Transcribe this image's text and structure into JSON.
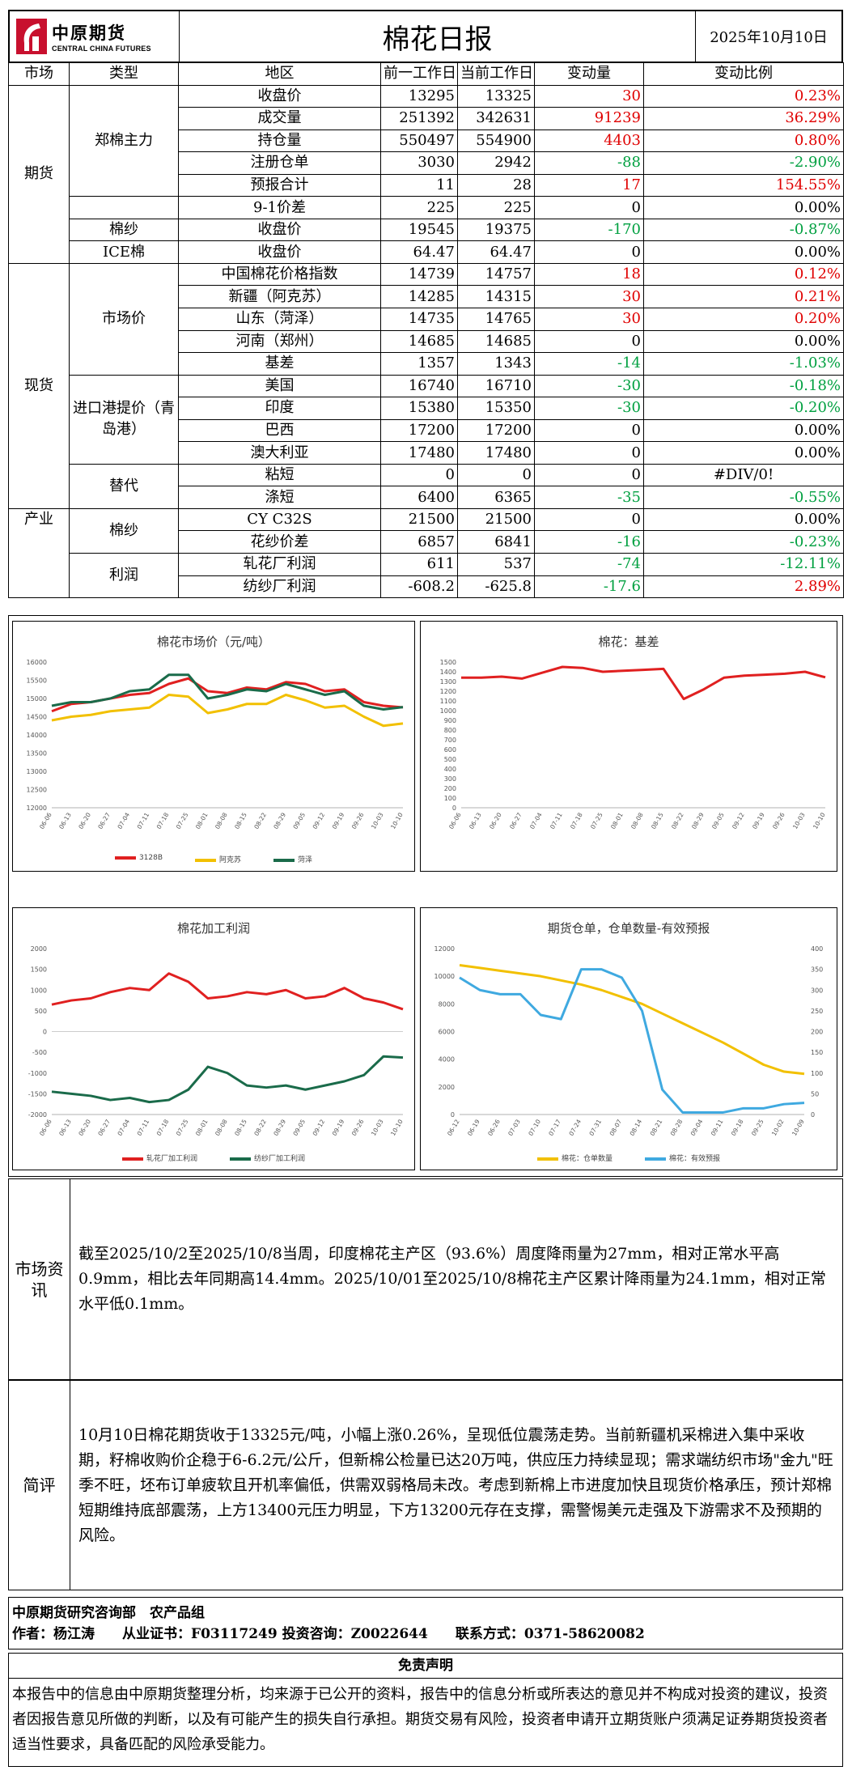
{
  "header": {
    "logo_cn": "中原期货",
    "logo_en": "CENTRAL CHINA FUTURES",
    "title": "棉花日报",
    "date": "2025年10月10日"
  },
  "table": {
    "columns": [
      "市场",
      "类型",
      "地区",
      "前一工作日",
      "当前工作日",
      "变动量",
      "变动比例"
    ],
    "rows": [
      {
        "item": "收盘价",
        "prev": "13295",
        "cur": "13325",
        "chg": "30",
        "pct": "0.23%",
        "col": "red"
      },
      {
        "item": "成交量",
        "prev": "251392",
        "cur": "342631",
        "chg": "91239",
        "pct": "36.29%",
        "col": "red"
      },
      {
        "item": "持仓量",
        "prev": "550497",
        "cur": "554900",
        "chg": "4403",
        "pct": "0.80%",
        "col": "red"
      },
      {
        "item": "注册仓单",
        "prev": "3030",
        "cur": "2942",
        "chg": "-88",
        "pct": "-2.90%",
        "col": "grn"
      },
      {
        "item": "预报合计",
        "prev": "11",
        "cur": "28",
        "chg": "17",
        "pct": "154.55%",
        "col": "red"
      },
      {
        "item": "9-1价差",
        "prev": "225",
        "cur": "225",
        "chg": "0",
        "pct": "0.00%",
        "col": ""
      },
      {
        "item": "收盘价",
        "prev": "19545",
        "cur": "19375",
        "chg": "-170",
        "pct": "-0.87%",
        "col": "grn"
      },
      {
        "item": "收盘价",
        "prev": "64.47",
        "cur": "64.47",
        "chg": "0",
        "pct": "0.00%",
        "col": ""
      },
      {
        "item": "中国棉花价格指数",
        "prev": "14739",
        "cur": "14757",
        "chg": "18",
        "pct": "0.12%",
        "col": "red"
      },
      {
        "item": "新疆（阿克苏）",
        "prev": "14285",
        "cur": "14315",
        "chg": "30",
        "pct": "0.21%",
        "col": "red"
      },
      {
        "item": "山东（菏泽）",
        "prev": "14735",
        "cur": "14765",
        "chg": "30",
        "pct": "0.20%",
        "col": "red"
      },
      {
        "item": "河南（郑州）",
        "prev": "14685",
        "cur": "14685",
        "chg": "0",
        "pct": "0.00%",
        "col": ""
      },
      {
        "item": "基差",
        "prev": "1357",
        "cur": "1343",
        "chg": "-14",
        "pct": "-1.03%",
        "col": "grn"
      },
      {
        "item": "美国",
        "prev": "16740",
        "cur": "16710",
        "chg": "-30",
        "pct": "-0.18%",
        "col": "grn"
      },
      {
        "item": "印度",
        "prev": "15380",
        "cur": "15350",
        "chg": "-30",
        "pct": "-0.20%",
        "col": "grn"
      },
      {
        "item": "巴西",
        "prev": "17200",
        "cur": "17200",
        "chg": "0",
        "pct": "0.00%",
        "col": ""
      },
      {
        "item": "澳大利亚",
        "prev": "17480",
        "cur": "17480",
        "chg": "0",
        "pct": "0.00%",
        "col": ""
      },
      {
        "item": "粘短",
        "prev": "0",
        "cur": "0",
        "chg": "0",
        "pct": "#DIV/0!",
        "col": ""
      },
      {
        "item": "涤短",
        "prev": "6400",
        "cur": "6365",
        "chg": "-35",
        "pct": "-0.55%",
        "col": "grn"
      },
      {
        "item": "CY C32S",
        "prev": "21500",
        "cur": "21500",
        "chg": "0",
        "pct": "0.00%",
        "col": ""
      },
      {
        "item": "花纱价差",
        "prev": "6857",
        "cur": "6841",
        "chg": "-16",
        "pct": "-0.23%",
        "col": "grn"
      },
      {
        "item": "轧花厂利润",
        "prev": "611",
        "cur": "537",
        "chg": "-74",
        "pct": "-12.11%",
        "col": "grn"
      },
      {
        "item": "纺纱厂利润",
        "prev": "-608.2",
        "cur": "-625.8",
        "chg": "-17.6",
        "pct": "2.89%",
        "col": "mix"
      }
    ],
    "markets": {
      "futures": "期货",
      "spot": "现货",
      "industry": "产业"
    },
    "types": {
      "zz": "郑棉主力",
      "yarn": "棉纱",
      "ice": "ICE棉",
      "market": "市场价",
      "import": "进口港提价（青岛港）",
      "sub": "替代",
      "yarn2": "棉纱",
      "profit": "利润"
    }
  },
  "chart_data": [
    {
      "type": "line",
      "title": "棉花市场价（元/吨）",
      "ylim": [
        12000,
        16000
      ],
      "yticks": [
        "16000",
        "15500",
        "15000",
        "14500",
        "14000",
        "13500",
        "13000",
        "12500",
        "12000"
      ],
      "x": [
        "06-06",
        "06-13",
        "06-20",
        "06-27",
        "07-04",
        "07-11",
        "07-18",
        "07-25",
        "08-01",
        "08-08",
        "08-15",
        "08-22",
        "08-29",
        "09-05",
        "09-12",
        "09-19",
        "09-26",
        "10-03",
        "10-10"
      ],
      "series": [
        {
          "name": "3128B",
          "color": "#e02020",
          "values": [
            14650,
            14850,
            14900,
            15000,
            15100,
            15150,
            15400,
            15550,
            15200,
            15150,
            15300,
            15250,
            15450,
            15400,
            15200,
            15250,
            14900,
            14800,
            14757
          ]
        },
        {
          "name": "阿克苏",
          "color": "#f2c000",
          "values": [
            14400,
            14500,
            14550,
            14650,
            14700,
            14750,
            15100,
            15050,
            14600,
            14700,
            14850,
            14850,
            15100,
            14950,
            14750,
            14800,
            14500,
            14250,
            14315
          ]
        },
        {
          "name": "菏泽",
          "color": "#1a6b4a",
          "values": [
            14800,
            14900,
            14900,
            15000,
            15200,
            15250,
            15650,
            15650,
            15000,
            15100,
            15250,
            15200,
            15400,
            15250,
            15100,
            15200,
            14800,
            14700,
            14765
          ]
        }
      ]
    },
    {
      "type": "line",
      "title": "棉花：基差",
      "ylim": [
        0,
        1500
      ],
      "yticks": [
        "1500",
        "1400",
        "1300",
        "1200",
        "1100",
        "1000",
        "900",
        "800",
        "700",
        "600",
        "500",
        "400",
        "300",
        "200",
        "100",
        "0"
      ],
      "x": [
        "06-06",
        "06-13",
        "06-20",
        "06-27",
        "07-04",
        "07-11",
        "07-18",
        "07-25",
        "08-01",
        "08-08",
        "08-15",
        "08-22",
        "08-29",
        "09-05",
        "09-12",
        "09-19",
        "09-26",
        "10-03",
        "10-10"
      ],
      "series": [
        {
          "name": "",
          "color": "#e02020",
          "values": [
            1340,
            1340,
            1350,
            1330,
            1390,
            1450,
            1440,
            1400,
            1410,
            1420,
            1430,
            1120,
            1220,
            1340,
            1360,
            1370,
            1380,
            1400,
            1343
          ]
        }
      ]
    },
    {
      "type": "line",
      "title": "棉花加工利润",
      "ylim": [
        -2000,
        2000
      ],
      "yticks": [
        "2000",
        "1500",
        "1000",
        "500",
        "0",
        "-500",
        "-1000",
        "-1500",
        "-2000"
      ],
      "x": [
        "06-06",
        "06-13",
        "06-20",
        "06-27",
        "07-04",
        "07-11",
        "07-18",
        "07-25",
        "08-01",
        "08-08",
        "08-15",
        "08-22",
        "08-29",
        "09-05",
        "09-12",
        "09-19",
        "09-26",
        "10-03",
        "10-10"
      ],
      "series": [
        {
          "name": "轧花厂加工利润",
          "color": "#e02020",
          "values": [
            650,
            750,
            800,
            950,
            1050,
            1000,
            1400,
            1200,
            800,
            850,
            950,
            900,
            1000,
            800,
            850,
            1050,
            800,
            700,
            537
          ]
        },
        {
          "name": "纺纱厂加工利润",
          "color": "#1a6b4a",
          "values": [
            -1450,
            -1500,
            -1550,
            -1650,
            -1600,
            -1700,
            -1650,
            -1400,
            -850,
            -1000,
            -1300,
            -1350,
            -1300,
            -1400,
            -1300,
            -1200,
            -1050,
            -600,
            -626
          ]
        }
      ]
    },
    {
      "type": "line",
      "title": "期货仓单，仓单数量-有效预报",
      "ylim": [
        0,
        12000
      ],
      "y2lim": [
        0,
        400
      ],
      "yticks": [
        "12000",
        "10000",
        "8000",
        "6000",
        "4000",
        "2000",
        "0"
      ],
      "y2ticks": [
        "400",
        "350",
        "300",
        "250",
        "200",
        "150",
        "100",
        "50",
        "0"
      ],
      "x": [
        "06-12",
        "06-19",
        "06-26",
        "07-03",
        "07-10",
        "07-17",
        "07-24",
        "07-31",
        "08-07",
        "08-14",
        "08-21",
        "08-28",
        "09-04",
        "09-11",
        "09-18",
        "09-25",
        "10-02",
        "10-09"
      ],
      "series": [
        {
          "name": "棉花：仓单数量",
          "color": "#f2c000",
          "values": [
            10800,
            10600,
            10400,
            10200,
            10000,
            9700,
            9400,
            9000,
            8500,
            8000,
            7300,
            6600,
            5900,
            5200,
            4400,
            3600,
            3100,
            2942
          ]
        },
        {
          "name": "棉花：有效预报",
          "color": "#3fa9e0",
          "axis": "right",
          "values": [
            330,
            300,
            290,
            290,
            240,
            230,
            350,
            350,
            330,
            250,
            60,
            5,
            5,
            5,
            15,
            15,
            25,
            28
          ]
        }
      ]
    }
  ],
  "news": {
    "label": "市场资讯",
    "text": "截至2025/10/2至2025/10/8当周，印度棉花主产区（93.6%）周度降雨量为27mm，相对正常水平高0.9mm，相比去年同期高14.4mm。2025/10/01至2025/10/8棉花主产区累计降雨量为24.1mm，相对正常水平低0.1mm。"
  },
  "comment": {
    "label": "简评",
    "text": "10月10日棉花期货收于13325元/吨，小幅上涨0.26%，呈现低位震荡走势。当前新疆机采棉进入集中采收期，籽棉收购价企稳于6-6.2元/公斤，但新棉公检量已达20万吨，供应压力持续显现；需求端纺织市场\"金九\"旺季不旺，坯布订单疲软且开机率偏低，供需双弱格局未改。考虑到新棉上市进度加快且现货价格承压，预计郑棉短期维持底部震荡，上方13400元压力明显，下方13200元存在支撑，需警惕美元走强及下游需求不及预期的风险。"
  },
  "footer": {
    "org": "中原期货研究咨询部　农产品组",
    "author": "作者：杨江涛　　从业证书：F03117249 投资咨询：Z0022644　　联系方式：0371-58620082",
    "disclaimer_title": "免责声明",
    "disclaimer": "本报告中的信息由中原期货整理分析，均来源于已公开的资料，报告中的信息分析或所表达的意见并不构成对投资的建议，投资者因报告意见所做的判断，以及有可能产生的损失自行承担。期货交易有风险，投资者申请开立期货账户须满足证券期货投资者适当性要求，具备匹配的风险承受能力。"
  }
}
